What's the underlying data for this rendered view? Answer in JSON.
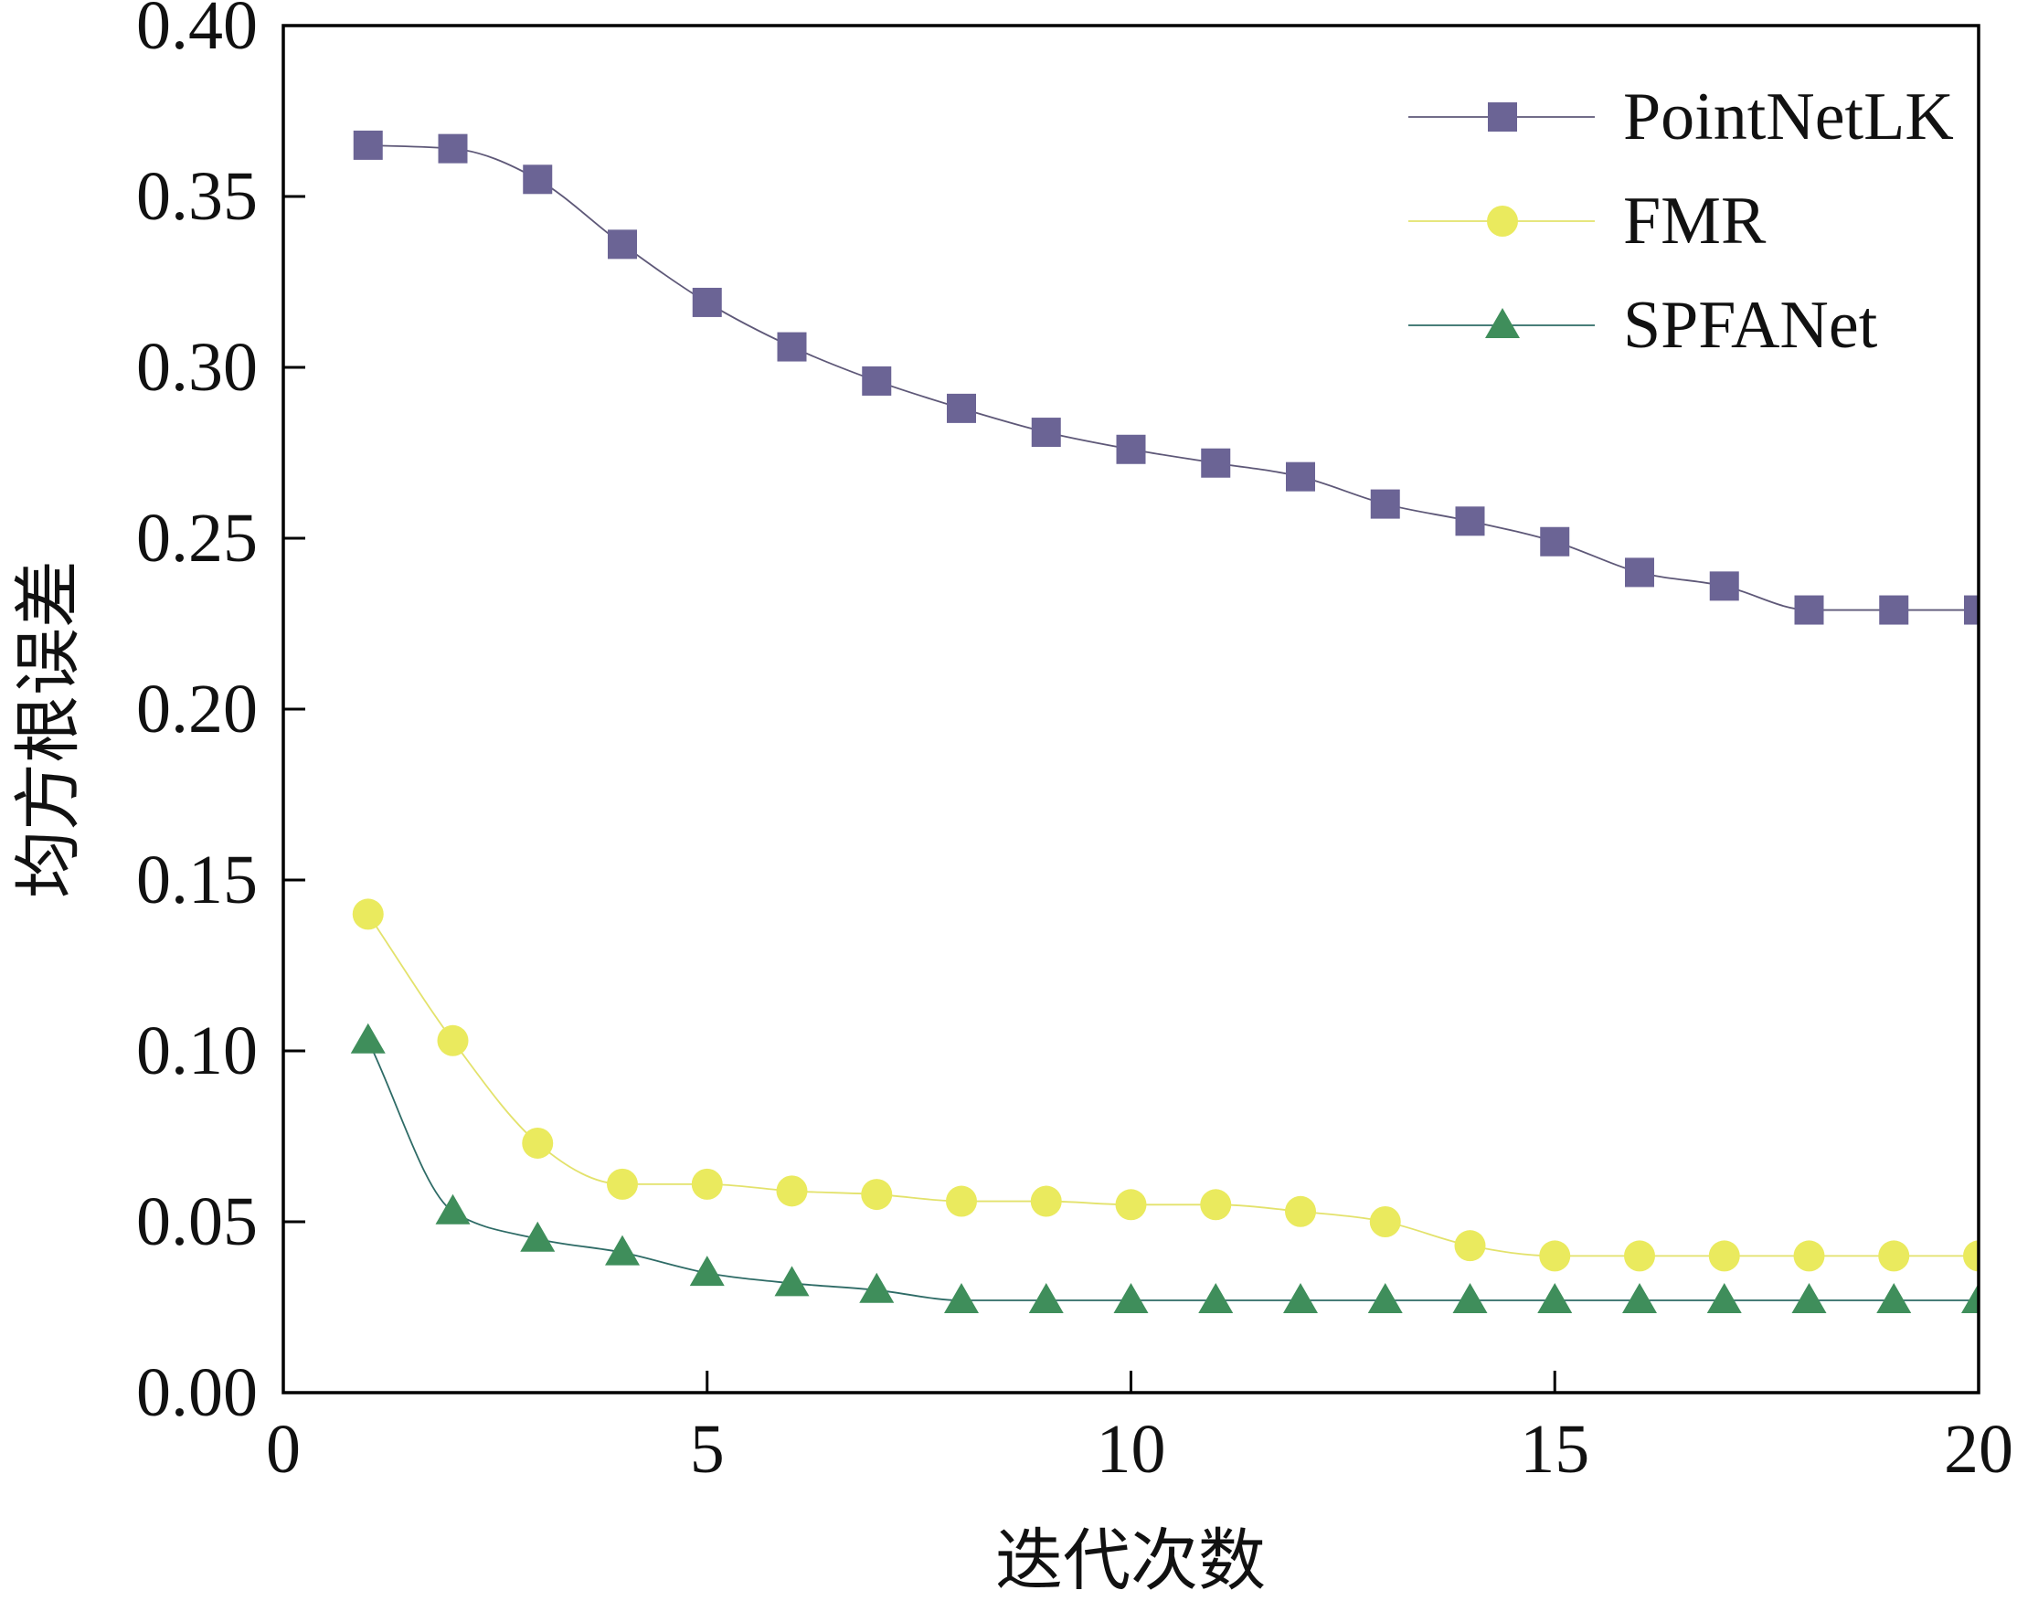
{
  "chart_data": {
    "type": "line",
    "xlabel": "迭代次数",
    "ylabel": "均方根误差",
    "xlim": [
      0,
      20
    ],
    "ylim": [
      0,
      0.4
    ],
    "xticks": [
      0,
      5,
      10,
      15,
      20
    ],
    "xtick_labels": [
      "0",
      "5",
      "10",
      "15",
      "20"
    ],
    "yticks": [
      0,
      0.05,
      0.1,
      0.15,
      0.2,
      0.25,
      0.3,
      0.35,
      0.4
    ],
    "ytick_labels": [
      "0.00",
      "0.05",
      "0.10",
      "0.15",
      "0.20",
      "0.25",
      "0.30",
      "0.35",
      "0.40"
    ],
    "grid": false,
    "legend": "top-right",
    "x": [
      1,
      2,
      3,
      4,
      5,
      6,
      7,
      8,
      9,
      10,
      11,
      12,
      13,
      14,
      15,
      16,
      17,
      18,
      19,
      20
    ],
    "series": [
      {
        "name": "PointNetLK",
        "marker": "square",
        "marker_color": "#6B6495",
        "line_color": "#5E5878",
        "values": [
          0.365,
          0.364,
          0.355,
          0.336,
          0.319,
          0.306,
          0.296,
          0.288,
          0.281,
          0.276,
          0.272,
          0.268,
          0.26,
          0.255,
          0.249,
          0.24,
          0.236,
          0.229,
          0.229,
          0.229
        ]
      },
      {
        "name": "FMR",
        "marker": "circle",
        "marker_color": "#EAEA5E",
        "line_color": "#E3E26C",
        "values": [
          0.14,
          0.103,
          0.073,
          0.061,
          0.061,
          0.059,
          0.058,
          0.056,
          0.056,
          0.055,
          0.055,
          0.053,
          0.05,
          0.043,
          0.04,
          0.04,
          0.04,
          0.04,
          0.04,
          0.04
        ]
      },
      {
        "name": "SPFANet",
        "marker": "triangle",
        "marker_color": "#3F8E5B",
        "line_color": "#2E6B66",
        "values": [
          0.103,
          0.053,
          0.045,
          0.041,
          0.035,
          0.032,
          0.03,
          0.027,
          0.027,
          0.027,
          0.027,
          0.027,
          0.027,
          0.027,
          0.027,
          0.027,
          0.027,
          0.027,
          0.027,
          0.027
        ]
      }
    ]
  }
}
